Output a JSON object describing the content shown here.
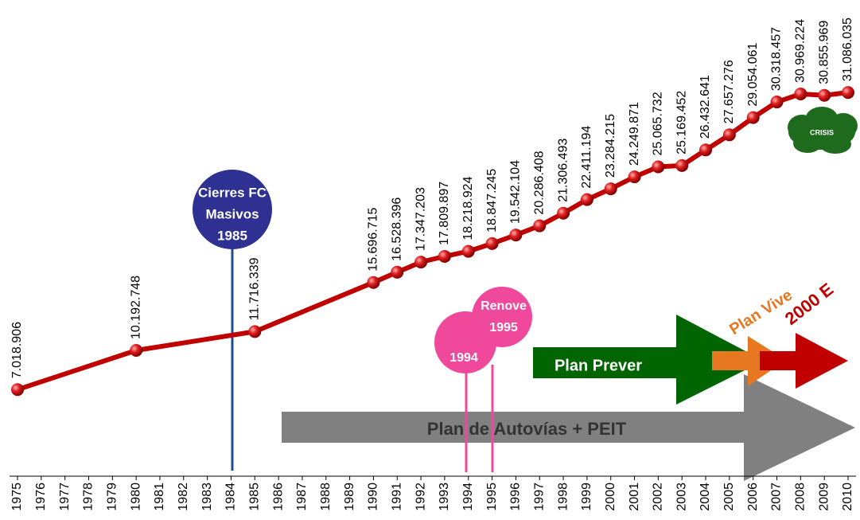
{
  "chart_data": {
    "type": "line",
    "x": [
      1975,
      1980,
      1985,
      1990,
      1991,
      1992,
      1993,
      1994,
      1995,
      1996,
      1997,
      1998,
      1999,
      2000,
      2001,
      2002,
      2003,
      2004,
      2005,
      2006,
      2007,
      2008,
      2009,
      2010
    ],
    "values": [
      7018906,
      10192748,
      11716339,
      15696715,
      16528396,
      17347203,
      17809897,
      18218924,
      18847245,
      19542104,
      20286408,
      21306493,
      22411194,
      23284215,
      24249871,
      25065732,
      25169452,
      26432641,
      27657276,
      29054061,
      30318457,
      30969224,
      30855969,
      31086035
    ],
    "value_labels": [
      "7.018.906",
      "10.192.748",
      "11.716.339",
      "15.696.715",
      "16.528.396",
      "17.347.203",
      "17.809.897",
      "18.218.924",
      "18.847.245",
      "19.542.104",
      "20.286.408",
      "21.306.493",
      "22.411.194",
      "23.284.215",
      "24.249.871",
      "25.065.732",
      "25.169.452",
      "26.432.641",
      "27.657.276",
      "29.054.061",
      "30.318.457",
      "30.969.224",
      "30.855.969",
      "31.086.035"
    ],
    "color": "#c00000",
    "xlim": [
      1975,
      2010
    ],
    "xticks": [
      1975,
      1976,
      1977,
      1978,
      1979,
      1980,
      1981,
      1982,
      1983,
      1984,
      1985,
      1986,
      1987,
      1988,
      1989,
      1990,
      1991,
      1992,
      1993,
      1994,
      1995,
      1996,
      1997,
      1998,
      1999,
      2000,
      2001,
      2002,
      2003,
      2004,
      2005,
      2006,
      2007,
      2008,
      2009,
      2010
    ],
    "ylim": [
      0,
      38580000
    ],
    "annotations": [
      "Cierres FC",
      "Masivos",
      "1985",
      "Renove",
      "1995",
      "1994",
      "Plan Prever",
      "Plan de Autovías + PEIT",
      "Plan Vive",
      "2000 E",
      "CRISIS"
    ]
  }
}
